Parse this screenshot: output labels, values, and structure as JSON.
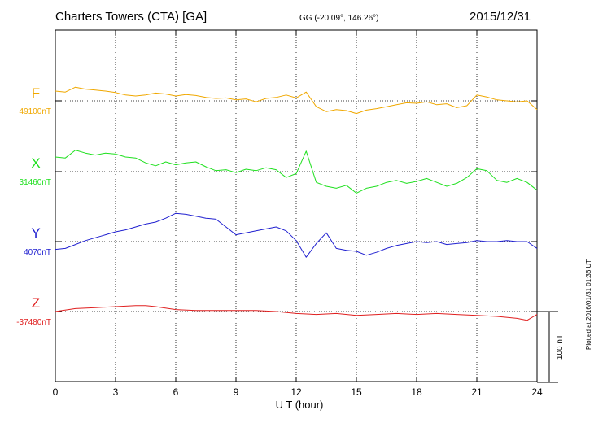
{
  "header": {
    "station": "Charters Towers (CTA)  [GA]",
    "coords": "GG (-20.09°, 146.26°)",
    "date": "2015/12/31"
  },
  "footer": {
    "plotted": "Plotted at 2016/01/31 01:36 UT"
  },
  "chart_data": {
    "type": "line",
    "xlabel": "U T (hour)",
    "xlim": [
      0,
      24
    ],
    "xticks": [
      0,
      3,
      6,
      9,
      12,
      15,
      18,
      21,
      24
    ],
    "scale_bar": "100 nT",
    "grid": true,
    "series": [
      {
        "name": "F",
        "baseline_label": "49100nT",
        "color": "#f0a800",
        "x": [
          0,
          0.5,
          1,
          1.5,
          2,
          2.5,
          3,
          3.5,
          4,
          4.5,
          5,
          5.5,
          6,
          6.5,
          7,
          7.5,
          8,
          8.5,
          9,
          9.5,
          10,
          10.5,
          11,
          11.5,
          12,
          12.5,
          13,
          13.5,
          14,
          14.5,
          15,
          15.5,
          16,
          16.5,
          17,
          17.5,
          18,
          18.5,
          19,
          19.5,
          20,
          20.5,
          21,
          21.5,
          22,
          22.5,
          23,
          23.5,
          24
        ],
        "y": [
          20,
          18,
          28,
          24,
          22,
          20,
          17,
          12,
          10,
          12,
          16,
          14,
          10,
          13,
          11,
          7,
          5,
          6,
          2,
          4,
          -2,
          5,
          7,
          12,
          6,
          18,
          -12,
          -22,
          -18,
          -20,
          -26,
          -19,
          -16,
          -12,
          -8,
          -4,
          -5,
          -2,
          -8,
          -6,
          -14,
          -10,
          12,
          8,
          2,
          0,
          -2,
          0,
          -18
        ]
      },
      {
        "name": "X",
        "baseline_label": "31460nT",
        "color": "#20e020",
        "x": [
          0,
          0.5,
          1,
          1.5,
          2,
          2.5,
          3,
          3.5,
          4,
          4.5,
          5,
          5.5,
          6,
          6.5,
          7,
          7.5,
          8,
          8.5,
          9,
          9.5,
          10,
          10.5,
          11,
          11.5,
          12,
          12.5,
          13,
          13.5,
          14,
          14.5,
          15,
          15.5,
          16,
          16.5,
          17,
          17.5,
          18,
          18.5,
          19,
          19.5,
          20,
          20.5,
          21,
          21.5,
          22,
          22.5,
          23,
          23.5,
          24
        ],
        "y": [
          30,
          28,
          44,
          38,
          34,
          38,
          36,
          30,
          28,
          18,
          12,
          20,
          14,
          18,
          20,
          10,
          2,
          4,
          -2,
          5,
          2,
          8,
          4,
          -12,
          -4,
          42,
          -22,
          -30,
          -34,
          -28,
          -44,
          -34,
          -30,
          -22,
          -18,
          -24,
          -20,
          -14,
          -22,
          -30,
          -24,
          -12,
          6,
          2,
          -18,
          -22,
          -14,
          -22,
          -38
        ]
      },
      {
        "name": "Y",
        "baseline_label": "4070nT",
        "color": "#2020d0",
        "x": [
          0,
          0.5,
          1,
          1.5,
          2,
          2.5,
          3,
          3.5,
          4,
          4.5,
          5,
          5.5,
          6,
          6.5,
          7,
          7.5,
          8,
          8.5,
          9,
          9.5,
          10,
          10.5,
          11,
          11.5,
          12,
          12.5,
          13,
          13.5,
          14,
          14.5,
          15,
          15.5,
          16,
          16.5,
          17,
          17.5,
          18,
          18.5,
          19,
          19.5,
          20,
          20.5,
          21,
          21.5,
          22,
          22.5,
          23,
          23.5,
          24
        ],
        "y": [
          -16,
          -14,
          -6,
          2,
          8,
          14,
          20,
          24,
          30,
          36,
          40,
          48,
          58,
          56,
          52,
          48,
          46,
          30,
          14,
          18,
          22,
          26,
          30,
          22,
          2,
          -32,
          -4,
          18,
          -14,
          -18,
          -20,
          -28,
          -22,
          -14,
          -8,
          -4,
          0,
          -2,
          0,
          -6,
          -4,
          -2,
          2,
          0,
          0,
          2,
          0,
          0,
          -14
        ]
      },
      {
        "name": "Z",
        "baseline_label": "-37480nT",
        "color": "#e02020",
        "x": [
          0,
          1,
          2,
          3,
          4,
          4.5,
          5,
          6,
          7,
          8,
          9,
          10,
          11,
          12,
          13,
          14,
          15,
          16,
          17,
          18,
          19,
          20,
          21,
          22,
          23,
          23.5,
          24
        ],
        "y": [
          0,
          6,
          8,
          10,
          12,
          12,
          10,
          4,
          2,
          2,
          2,
          2,
          0,
          -4,
          -6,
          -4,
          -8,
          -6,
          -4,
          -6,
          -4,
          -6,
          -8,
          -10,
          -14,
          -18,
          -6
        ]
      }
    ]
  }
}
